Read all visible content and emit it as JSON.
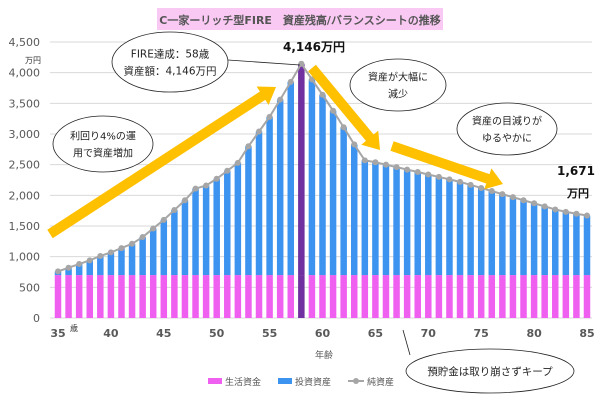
{
  "chart_data": {
    "type": "bar",
    "title": "C一家ーリッチ型FIRE　資産残高/バランスシートの推移",
    "xlabel": "年齢",
    "xunit": "歳",
    "ylabel": "万円",
    "ylim": [
      0,
      4500
    ],
    "yticks": [
      0,
      500,
      1000,
      1500,
      2000,
      2500,
      3000,
      3500,
      4000,
      4500
    ],
    "ytick_labels": [
      "0",
      "500",
      "1,000",
      "1,500",
      "2,000",
      "2,500",
      "3,000",
      "3,500",
      "4,000",
      "4,500"
    ],
    "xticks": [
      35,
      40,
      45,
      50,
      55,
      60,
      65,
      70,
      75,
      80,
      85
    ],
    "grid": true,
    "legend_position": "bottom",
    "x": [
      35,
      36,
      37,
      38,
      39,
      40,
      41,
      42,
      43,
      44,
      45,
      46,
      47,
      48,
      49,
      50,
      51,
      52,
      53,
      54,
      55,
      56,
      57,
      58,
      59,
      60,
      61,
      62,
      63,
      64,
      65,
      66,
      67,
      68,
      69,
      70,
      71,
      72,
      73,
      74,
      75,
      76,
      77,
      78,
      79,
      80,
      81,
      82,
      83,
      84,
      85
    ],
    "series": [
      {
        "name": "生活資金",
        "kind": "stacked-bar",
        "color": "#f060f0",
        "values": [
          700,
          700,
          700,
          700,
          700,
          700,
          700,
          700,
          700,
          700,
          700,
          700,
          700,
          700,
          700,
          700,
          700,
          700,
          700,
          700,
          700,
          700,
          700,
          700,
          700,
          700,
          700,
          700,
          700,
          700,
          700,
          700,
          700,
          700,
          700,
          700,
          700,
          700,
          700,
          700,
          700,
          700,
          700,
          700,
          700,
          700,
          700,
          700,
          700,
          700,
          700
        ]
      },
      {
        "name": "投資資産",
        "kind": "stacked-bar",
        "color": "#3d94f0",
        "values": [
          60,
          120,
          180,
          240,
          310,
          370,
          440,
          510,
          620,
          760,
          900,
          1060,
          1220,
          1410,
          1460,
          1570,
          1700,
          1830,
          2100,
          2340,
          2580,
          2860,
          3150,
          3446,
          3190,
          2940,
          2680,
          2410,
          2130,
          1870,
          1840,
          1800,
          1760,
          1720,
          1680,
          1640,
          1600,
          1560,
          1520,
          1470,
          1420,
          1370,
          1320,
          1270,
          1220,
          1170,
          1120,
          1070,
          1030,
          1000,
          971
        ]
      },
      {
        "name": "純資産",
        "kind": "line",
        "color": "#a6a6a6",
        "values": [
          760,
          820,
          880,
          940,
          1010,
          1070,
          1140,
          1210,
          1320,
          1460,
          1600,
          1760,
          1920,
          2110,
          2160,
          2270,
          2400,
          2530,
          2800,
          3040,
          3280,
          3560,
          3850,
          4146,
          3890,
          3640,
          3380,
          3110,
          2830,
          2570,
          2540,
          2500,
          2460,
          2420,
          2380,
          2340,
          2300,
          2260,
          2220,
          2170,
          2120,
          2070,
          2020,
          1970,
          1920,
          1870,
          1820,
          1770,
          1730,
          1700,
          1671
        ]
      }
    ],
    "highlight": {
      "age": 58,
      "color": "#7030a0"
    },
    "annotations": {
      "fire_line1": "FIRE達成：58歳",
      "fire_line2": "資産額：4,146万円",
      "peak_label": "4,146万円",
      "end_value": "1,671",
      "end_unit": "万円",
      "growth_line1": "利回り4%の運",
      "growth_line2": "用で資産増加",
      "drop_line1": "資産が大幅に",
      "drop_line2": "減少",
      "slow_line1": "資産の目減りが",
      "slow_line2": "ゆるやかに",
      "keep": "預貯金は取り崩さずキープ"
    },
    "arrow_color": "#ffc000",
    "title_bg": "#f9c9f4"
  }
}
